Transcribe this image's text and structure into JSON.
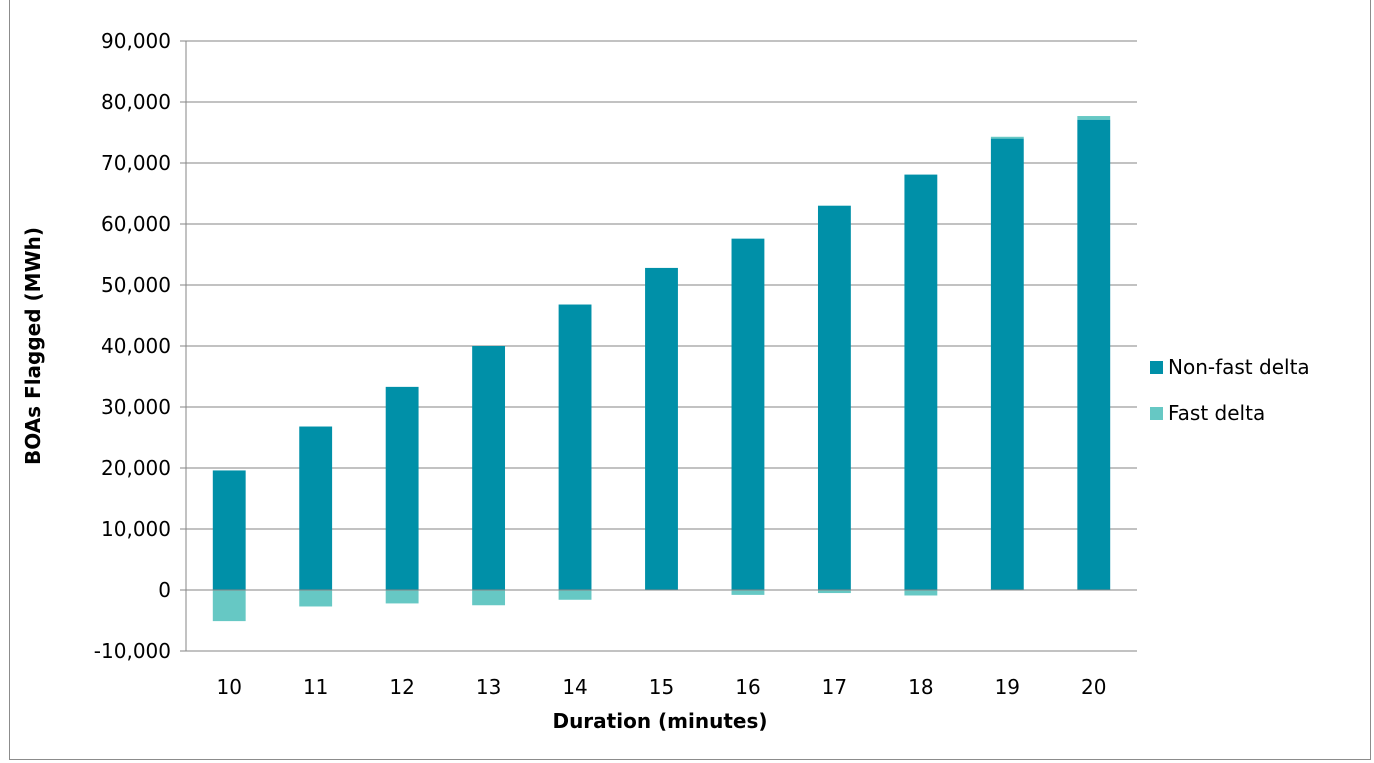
{
  "chart_data": {
    "type": "bar",
    "stacked": true,
    "categories": [
      "10",
      "11",
      "12",
      "13",
      "14",
      "15",
      "16",
      "17",
      "18",
      "19",
      "20"
    ],
    "series": [
      {
        "name": "Non-fast delta",
        "color": "#0090a8",
        "values": [
          19600,
          26800,
          33300,
          40000,
          46800,
          52800,
          57600,
          63000,
          68100,
          74000,
          77100
        ]
      },
      {
        "name": "Fast delta",
        "color": "#66c8c4",
        "values": [
          -5100,
          -2700,
          -2200,
          -2500,
          -1600,
          0,
          -800,
          -500,
          -900,
          300,
          600
        ]
      }
    ],
    "xlabel": "Duration (minutes)",
    "ylabel": "BOAs Flagged (MWh)",
    "ylim": [
      -10000,
      90000
    ],
    "yticks": [
      "-10,000",
      "0",
      "10,000",
      "20,000",
      "30,000",
      "40,000",
      "50,000",
      "60,000",
      "70,000",
      "80,000",
      "90,000"
    ],
    "grid": true,
    "legend_position": "right"
  }
}
